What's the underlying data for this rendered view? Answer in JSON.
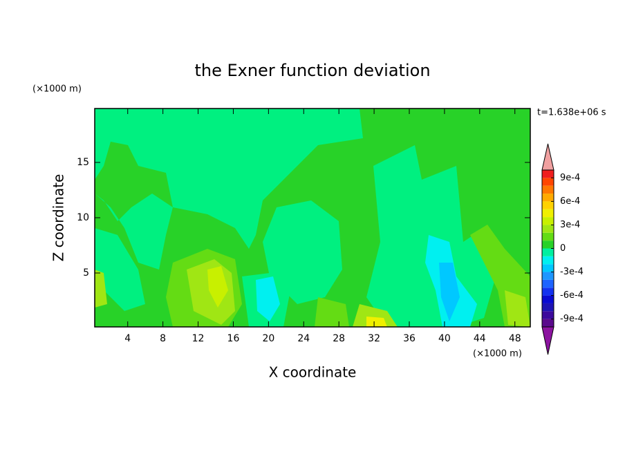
{
  "chart_data": {
    "type": "contour",
    "title": "the Exner function deviation",
    "xlabel": "X coordinate",
    "ylabel": "Z coordinate",
    "x_unit": "(×1000 m)",
    "y_unit": "(×1000 m)",
    "time_label": "t=1.638e+06 s",
    "xlim": [
      0.25,
      49.75
    ],
    "ylim": [
      0.125,
      19.875
    ],
    "xticks": [
      4,
      8,
      12,
      16,
      20,
      24,
      28,
      32,
      36,
      40,
      44,
      48
    ],
    "yticks": [
      5,
      10,
      15
    ],
    "colorbar": {
      "levels": [
        -0.001,
        -0.0009,
        -0.0008,
        -0.0007,
        -0.0006,
        -0.0005,
        -0.0004,
        -0.0003,
        -0.0002,
        -0.0001,
        0,
        0.0001,
        0.0002,
        0.0003,
        0.0004,
        0.0005,
        0.0006,
        0.0007,
        0.0008,
        0.0009,
        0.001
      ],
      "colors": [
        "#5a0a8c",
        "#3c0a9c",
        "#1e14b4",
        "#0a0ad2",
        "#1432f0",
        "#1e64ff",
        "#1e96ff",
        "#00c8ff",
        "#00f0f0",
        "#00f0a0",
        "#28d228",
        "#64dc14",
        "#a0e614",
        "#c8f000",
        "#f0f000",
        "#ffd200",
        "#ffaa00",
        "#ff7800",
        "#ff4600",
        "#f01e1e"
      ],
      "under_color": "#8c14a0",
      "over_color": "#f0a0a0",
      "ticks": [
        {
          "value": -0.0009,
          "label": "-9e-4"
        },
        {
          "value": -0.0006,
          "label": "-6e-4"
        },
        {
          "value": -0.0003,
          "label": "-3e-4"
        },
        0,
        {
          "value": 0.0003,
          "label": "3e-4"
        },
        {
          "value": 0.0006,
          "label": "6e-4"
        },
        {
          "value": 0.0009,
          "label": "9e-4"
        }
      ]
    }
  }
}
